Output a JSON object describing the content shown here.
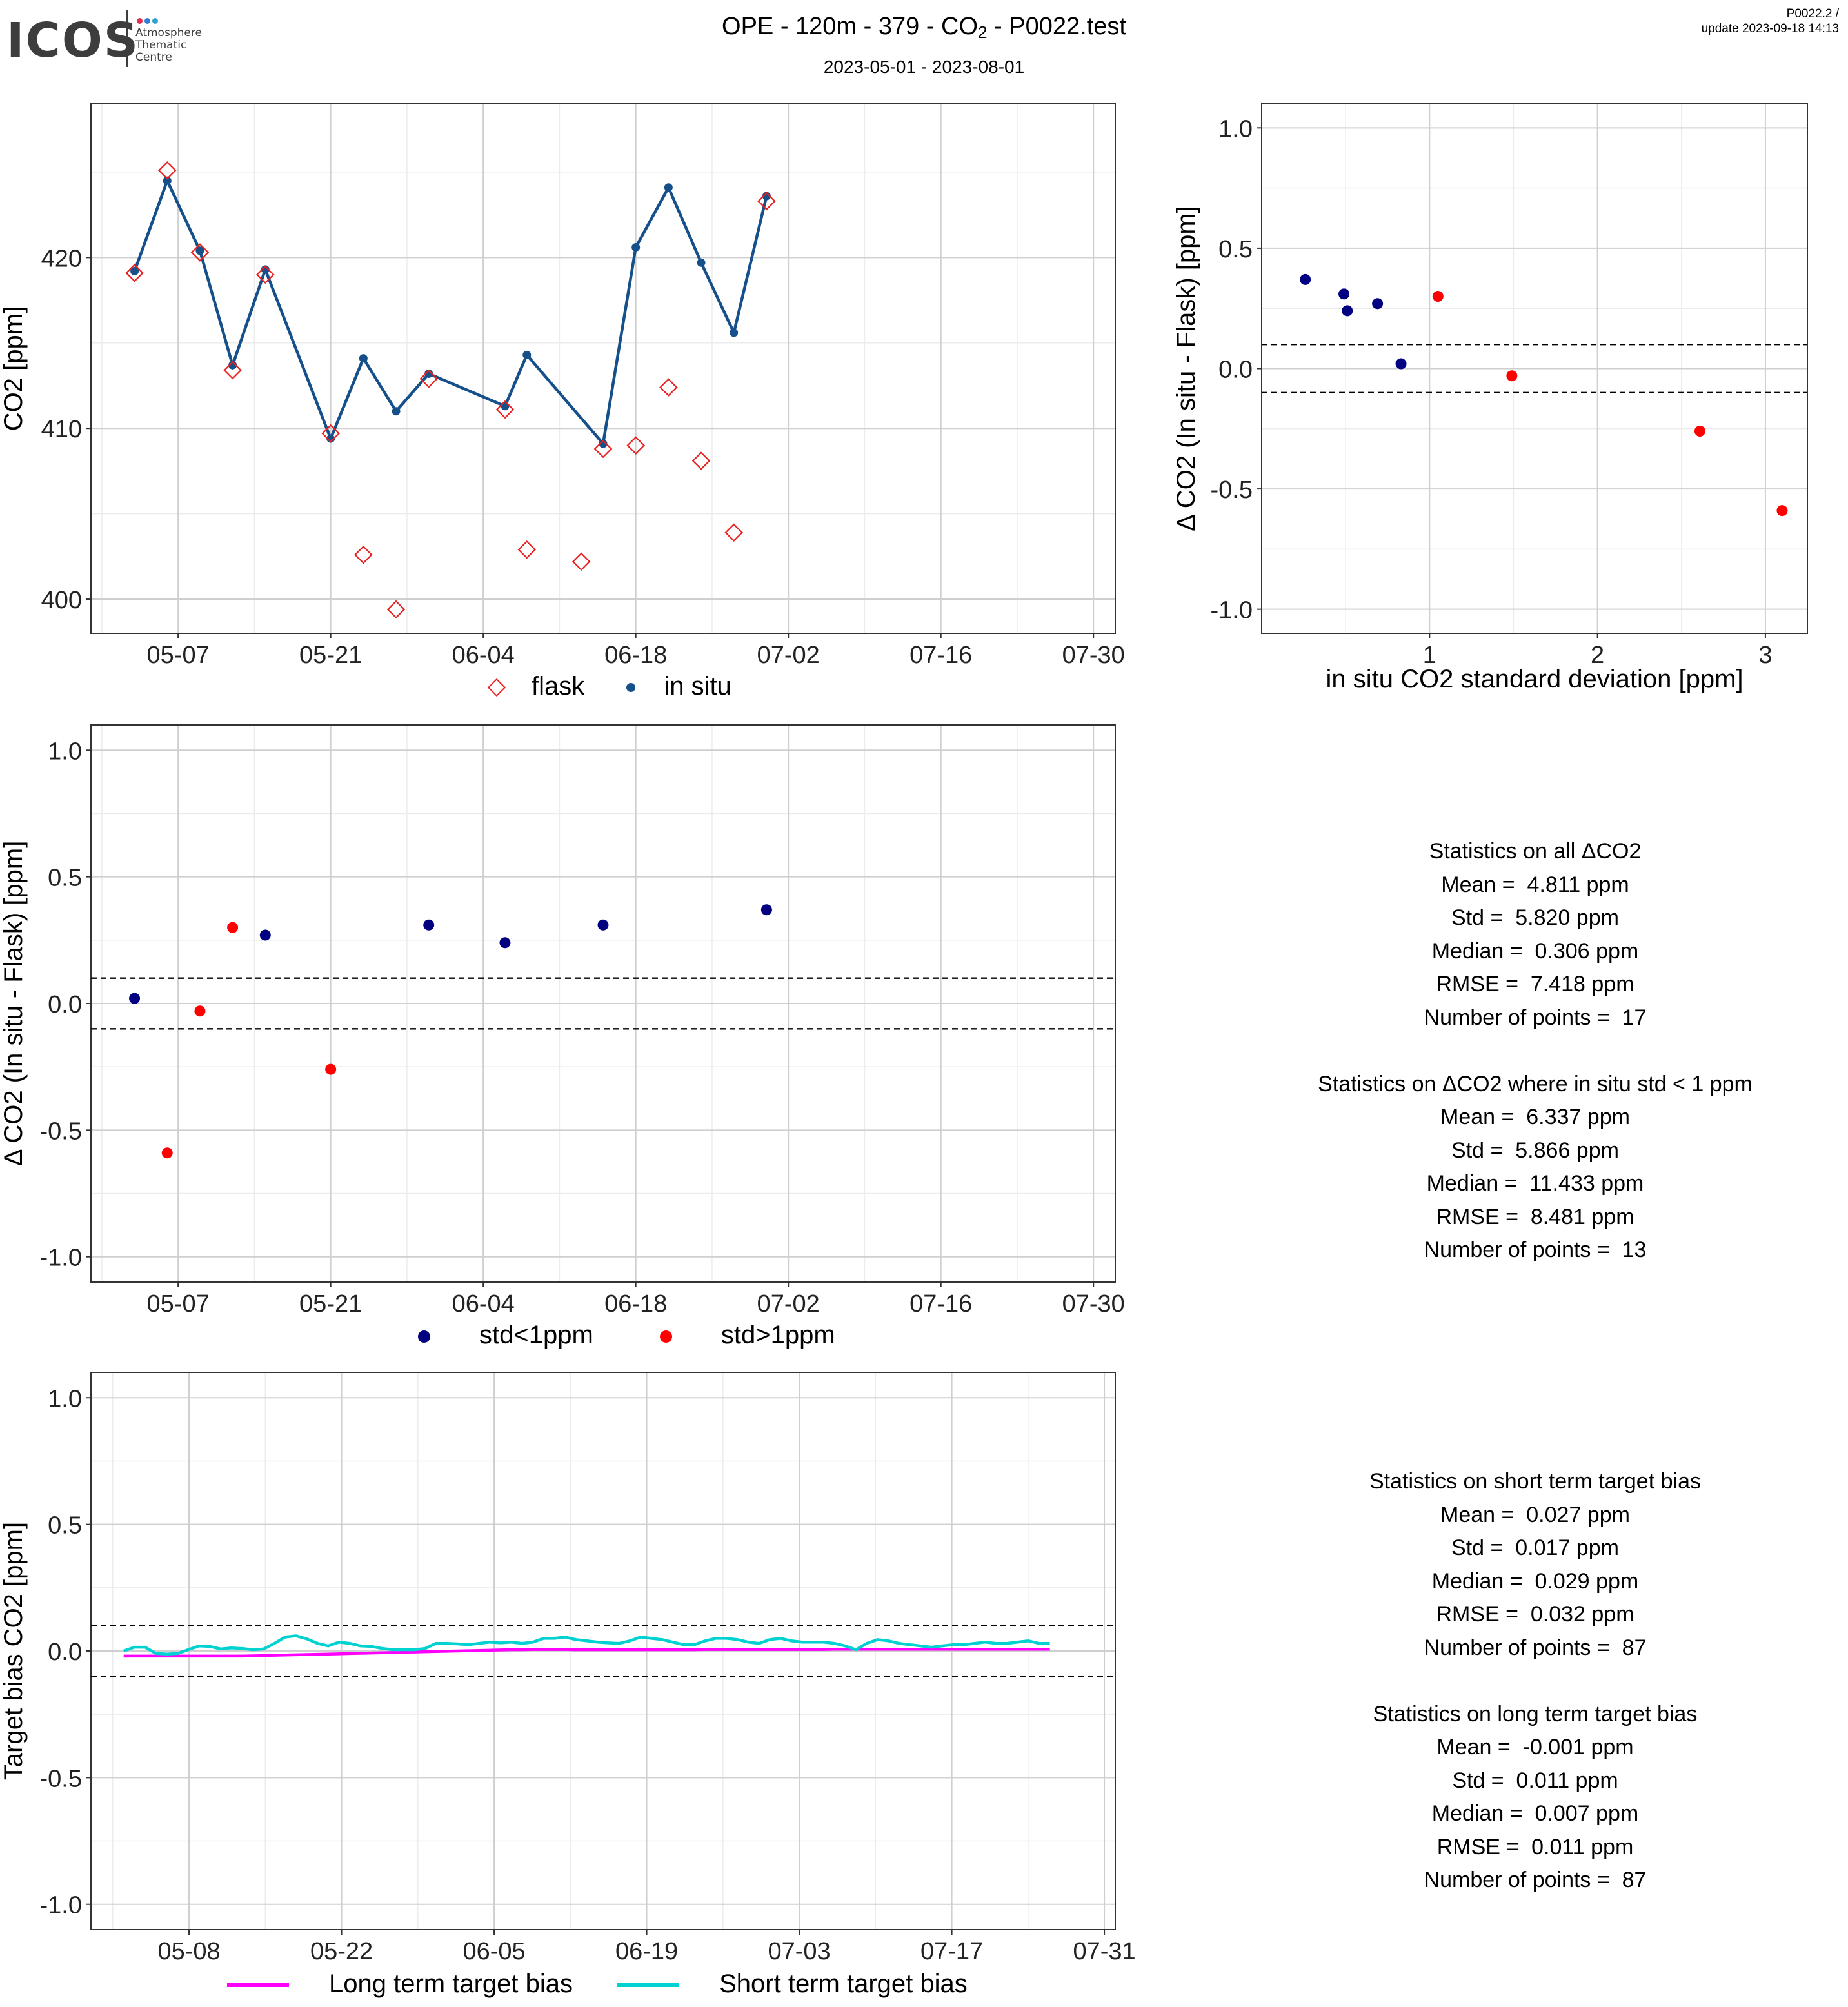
{
  "header": {
    "logo_text": "ICOS",
    "logo_subtitle": "Atmosphere\nThematic\nCentre",
    "title_prefix": "OPE - 120m - 379 - CO",
    "title_sub": "2",
    "title_suffix": " - P0022.test",
    "subtitle": "2023-05-01 - 2023-08-01",
    "version_line1": "P0022.2 /",
    "version_line2": "update  2023-09-18 14:13"
  },
  "colors": {
    "flask": "#e8201e",
    "insitu": "#16508a",
    "std_low": "#000080",
    "std_high": "#ff0000",
    "long_term": "#ff00ff",
    "short_term": "#00d1d1",
    "logo_dots": [
      "#e3304a",
      "#2f7cd3",
      "#2fa3cf"
    ]
  },
  "chart_data": [
    {
      "id": "timeseries",
      "type": "scatter",
      "ylabel": "CO2 [ppm]",
      "xlabel": "",
      "xlim": [
        "2023-04-29",
        "2023-08-01"
      ],
      "ylim": [
        398,
        429
      ],
      "yticks": [
        400,
        410,
        420
      ],
      "xticks": [
        "05-07",
        "05-21",
        "06-04",
        "06-18",
        "07-02",
        "07-16",
        "07-30"
      ],
      "grid": true,
      "legend_position": "bottom",
      "series": [
        {
          "name": "flask",
          "marker": "diamond-open",
          "x": [
            "2023-05-03",
            "2023-05-06",
            "2023-05-09",
            "2023-05-12",
            "2023-05-15",
            "2023-05-21",
            "2023-05-24",
            "2023-05-27",
            "2023-05-30",
            "2023-06-06",
            "2023-06-08",
            "2023-06-13",
            "2023-06-15",
            "2023-06-18",
            "2023-06-21",
            "2023-06-24",
            "2023-06-27",
            "2023-06-30"
          ],
          "y": [
            419.1,
            425.1,
            420.3,
            413.4,
            419.0,
            409.7,
            402.6,
            399.4,
            412.9,
            411.1,
            402.9,
            402.2,
            408.8,
            409.0,
            412.4,
            408.1,
            403.9,
            423.3
          ]
        },
        {
          "name": "in situ",
          "marker": "dot-line",
          "x": [
            "2023-05-03",
            "2023-05-06",
            "2023-05-09",
            "2023-05-12",
            "2023-05-15",
            "2023-05-21",
            "2023-05-24",
            "2023-05-27",
            "2023-05-30",
            "2023-06-06",
            "2023-06-08",
            "2023-06-15",
            "2023-06-18",
            "2023-06-21",
            "2023-06-24",
            "2023-06-27",
            "2023-06-30"
          ],
          "y": [
            419.2,
            424.5,
            420.4,
            413.7,
            419.3,
            409.4,
            414.1,
            411.0,
            413.2,
            411.3,
            414.3,
            409.1,
            420.6,
            424.1,
            419.7,
            415.6,
            423.6
          ]
        }
      ]
    },
    {
      "id": "delta_vs_std",
      "type": "scatter",
      "xlabel": "in situ CO2 standard deviation [ppm]",
      "ylabel": "Δ CO2 (In situ - Flask) [ppm]",
      "xlim": [
        0,
        3.25
      ],
      "ylim": [
        -1.1,
        1.1
      ],
      "xticks": [
        1,
        2,
        3
      ],
      "yticks": [
        -1.0,
        -0.5,
        0.0,
        0.5,
        1.0
      ],
      "hlines": [
        0.1,
        -0.1
      ],
      "grid": true,
      "series": [
        {
          "name": "std<1ppm",
          "x": [
            0.26,
            0.49,
            0.51,
            0.69,
            0.83
          ],
          "y": [
            0.37,
            0.31,
            0.24,
            0.27,
            0.02
          ]
        },
        {
          "name": "std>1ppm",
          "x": [
            1.05,
            1.49,
            2.61,
            3.1
          ],
          "y": [
            0.3,
            -0.03,
            -0.26,
            -0.59
          ]
        }
      ]
    },
    {
      "id": "delta_time",
      "type": "scatter",
      "ylabel": "Δ CO2 (In situ - Flask) [ppm]",
      "xlabel": "",
      "xlim": [
        "2023-04-29",
        "2023-08-01"
      ],
      "ylim": [
        -1.1,
        1.1
      ],
      "yticks": [
        -1.0,
        -0.5,
        0.0,
        0.5,
        1.0
      ],
      "xticks": [
        "05-07",
        "05-21",
        "06-04",
        "06-18",
        "07-02",
        "07-16",
        "07-30"
      ],
      "hlines": [
        0.1,
        -0.1
      ],
      "grid": true,
      "legend_position": "bottom",
      "series": [
        {
          "name": "std<1ppm",
          "x": [
            "2023-05-03",
            "2023-05-15",
            "2023-05-30",
            "2023-06-06",
            "2023-06-15",
            "2023-06-30"
          ],
          "y": [
            0.02,
            0.27,
            0.31,
            0.24,
            0.31,
            0.37
          ]
        },
        {
          "name": "std>1ppm",
          "x": [
            "2023-05-06",
            "2023-05-09",
            "2023-05-12",
            "2023-05-21"
          ],
          "y": [
            -0.59,
            -0.03,
            0.3,
            -0.26
          ]
        }
      ]
    },
    {
      "id": "target_bias",
      "type": "line",
      "ylabel": "Target bias CO2 [ppm]",
      "xlabel": "",
      "xlim": [
        "2023-04-29",
        "2023-08-01"
      ],
      "ylim": [
        -1.1,
        1.1
      ],
      "yticks": [
        -1.0,
        -0.5,
        0.0,
        0.5,
        1.0
      ],
      "xticks": [
        "05-08",
        "05-22",
        "06-05",
        "06-19",
        "07-03",
        "07-17",
        "07-31"
      ],
      "hlines": [
        0.1,
        -0.1
      ],
      "grid": true,
      "legend_position": "bottom",
      "x_start": "2023-05-02",
      "x_end": "2023-07-26",
      "series": [
        {
          "name": "Long term target bias",
          "y": [
            -0.02,
            -0.02,
            -0.02,
            -0.02,
            -0.02,
            -0.02,
            -0.02,
            -0.02,
            -0.02,
            -0.02,
            -0.02,
            -0.02,
            -0.019,
            -0.018,
            -0.017,
            -0.016,
            -0.015,
            -0.014,
            -0.013,
            -0.012,
            -0.011,
            -0.01,
            -0.009,
            -0.008,
            -0.007,
            -0.006,
            -0.005,
            -0.004,
            -0.003,
            -0.002,
            -0.001,
            0.0,
            0.001,
            0.002,
            0.003,
            0.004,
            0.005,
            0.005,
            0.006,
            0.006,
            0.006,
            0.006,
            0.005,
            0.005,
            0.005,
            0.005,
            0.005,
            0.005,
            0.005,
            0.005,
            0.005,
            0.005,
            0.005,
            0.005,
            0.006,
            0.006,
            0.006,
            0.006,
            0.006,
            0.006,
            0.006,
            0.006,
            0.006,
            0.006,
            0.006,
            0.006,
            0.007,
            0.007,
            0.007,
            0.007,
            0.007,
            0.007,
            0.007,
            0.007,
            0.007,
            0.007,
            0.007,
            0.007,
            0.007,
            0.007,
            0.007,
            0.007,
            0.007,
            0.007,
            0.007,
            0.007,
            0.007
          ]
        },
        {
          "name": "Short term target bias",
          "y": [
            0.0,
            0.015,
            0.015,
            -0.01,
            -0.012,
            -0.01,
            0.005,
            0.02,
            0.018,
            0.008,
            0.012,
            0.01,
            0.005,
            0.008,
            0.03,
            0.055,
            0.06,
            0.048,
            0.03,
            0.02,
            0.035,
            0.03,
            0.02,
            0.018,
            0.01,
            0.005,
            0.005,
            0.005,
            0.01,
            0.03,
            0.03,
            0.028,
            0.025,
            0.03,
            0.035,
            0.032,
            0.035,
            0.03,
            0.035,
            0.05,
            0.05,
            0.055,
            0.045,
            0.04,
            0.035,
            0.032,
            0.03,
            0.04,
            0.055,
            0.05,
            0.045,
            0.035,
            0.025,
            0.025,
            0.04,
            0.05,
            0.05,
            0.045,
            0.035,
            0.03,
            0.045,
            0.05,
            0.04,
            0.035,
            0.035,
            0.035,
            0.03,
            0.02,
            0.005,
            0.03,
            0.045,
            0.04,
            0.03,
            0.025,
            0.02,
            0.015,
            0.02,
            0.025,
            0.025,
            0.03,
            0.035,
            0.03,
            0.03,
            0.035,
            0.04,
            0.03,
            0.03
          ]
        }
      ]
    }
  ],
  "legends": {
    "ts": {
      "flask": "flask",
      "insitu": "in situ"
    },
    "std": {
      "low": "std<1ppm",
      "high": "std>1ppm"
    },
    "bias": {
      "long": "Long term target bias",
      "short": "Short term target bias"
    }
  },
  "stats_delta": [
    "Statistics on all ΔCO2",
    "Mean =  4.811 ppm",
    "Std =  5.820 ppm",
    "Median =  0.306 ppm",
    "RMSE =  7.418 ppm",
    "Number of points =  17",
    "",
    "Statistics on ΔCO2 where in situ std < 1 ppm",
    "Mean =  6.337 ppm",
    "Std =  5.866 ppm",
    "Median =  11.433 ppm",
    "RMSE =  8.481 ppm",
    "Number of points =  13"
  ],
  "stats_bias": [
    "Statistics on short term target bias",
    "Mean =  0.027 ppm",
    "Std =  0.017 ppm",
    "Median =  0.029 ppm",
    "RMSE =  0.032 ppm",
    "Number of points =  87",
    "",
    "Statistics on long term target bias",
    "Mean =  -0.001 ppm",
    "Std =  0.011 ppm",
    "Median =  0.007 ppm",
    "RMSE =  0.011 ppm",
    "Number of points =  87"
  ]
}
